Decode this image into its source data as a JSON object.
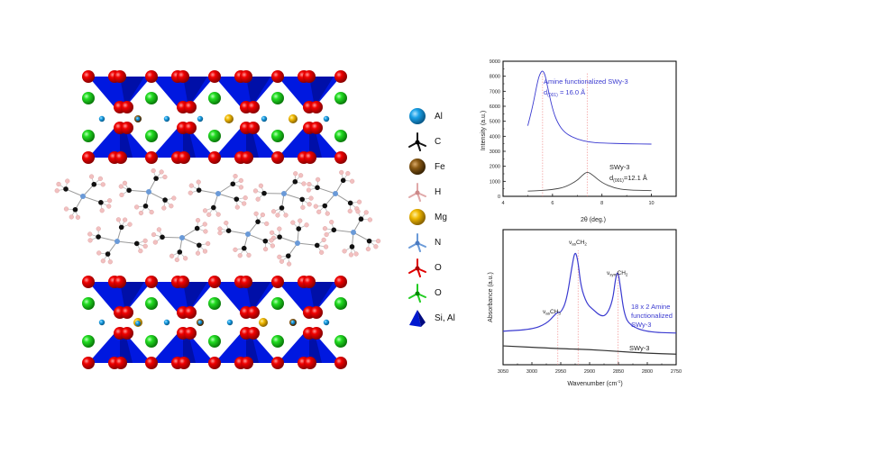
{
  "structure": {
    "description": "Layered clay crystal structure with intercalated amine molecules",
    "colors": {
      "O": "#e50000",
      "O_green": "#22cc22",
      "Al": "#1ea0e0",
      "Mg": "#f0b800",
      "Fe": "#8a5a14",
      "C": "#111111",
      "H": "#f0b8b8",
      "N": "#6a9ad8",
      "tetrahedra": "#0018e0"
    }
  },
  "legend": {
    "items": [
      {
        "label": "Al",
        "icon": "sphere",
        "color": "#1a8fd6"
      },
      {
        "label": "C",
        "icon": "stick-tetra",
        "color": "#111111"
      },
      {
        "label": "Fe",
        "icon": "sphere",
        "color": "#7a4a0c"
      },
      {
        "label": "H",
        "icon": "stick-tetra",
        "color": "#e0a8a8"
      },
      {
        "label": "Mg",
        "icon": "sphere",
        "color": "#e0a800"
      },
      {
        "label": "N",
        "icon": "stick-tetra",
        "color": "#6a9ad8"
      },
      {
        "label": "O",
        "icon": "stick-tetra",
        "color": "#e00000"
      },
      {
        "label": "O",
        "icon": "stick-tetra",
        "color": "#22cc22"
      },
      {
        "label": "Si, Al",
        "icon": "tetrahedron",
        "color": "#0018d0"
      }
    ]
  },
  "chart_data": [
    {
      "type": "line",
      "title": "",
      "xlabel": "2θ (deg.)",
      "ylabel": "Intensity (a.u.)",
      "xlim": [
        4,
        11
      ],
      "ylim": [
        0,
        9000
      ],
      "xticks": [
        "4",
        "6",
        "8",
        "10"
      ],
      "yticks": [
        "0",
        "1000",
        "2000",
        "3000",
        "4000",
        "5000",
        "6000",
        "7000",
        "8000",
        "9000"
      ],
      "grid": false,
      "series": [
        {
          "name": "Amine functionalized SWy-3",
          "color": "#3a3ad0",
          "annotation": "d(001) = 16.0 Å",
          "peak_x": 5.6,
          "x": [
            5.0,
            5.2,
            5.4,
            5.5,
            5.6,
            5.7,
            5.8,
            6.0,
            6.2,
            6.5,
            7.0,
            7.5,
            8.0,
            9.0,
            10.0
          ],
          "y": [
            4700,
            6000,
            7700,
            8200,
            8400,
            8100,
            7300,
            5800,
            4900,
            4200,
            3800,
            3600,
            3550,
            3500,
            3480
          ]
        },
        {
          "name": "SWy-3",
          "color": "#444444",
          "annotation": "d(001)=12.1 Å",
          "peak_x": 7.4,
          "x": [
            5.0,
            5.5,
            6.0,
            6.5,
            7.0,
            7.2,
            7.4,
            7.6,
            8.0,
            8.5,
            9.0,
            10.0
          ],
          "y": [
            350,
            380,
            450,
            600,
            1050,
            1400,
            1650,
            1450,
            900,
            550,
            420,
            380
          ]
        }
      ],
      "reference_lines_x": [
        5.6,
        7.4
      ]
    },
    {
      "type": "line",
      "title": "",
      "xlabel": "Wavenumber (cm⁻¹)",
      "ylabel": "Absorbance (a.u.)",
      "xlim": [
        3050,
        2750
      ],
      "xticks": [
        "3050",
        "3000",
        "2950",
        "2900",
        "2850",
        "2800",
        "2750"
      ],
      "grid": false,
      "series": [
        {
          "name": "18 x 2 Amine functionalized SWy-3",
          "color": "#3a3ad0",
          "x": [
            3050,
            3000,
            2975,
            2960,
            2955,
            2950,
            2940,
            2930,
            2925,
            2920,
            2915,
            2905,
            2895,
            2880,
            2870,
            2860,
            2855,
            2851,
            2847,
            2840,
            2830,
            2800,
            2750
          ],
          "y": [
            0.12,
            0.14,
            0.2,
            0.3,
            0.33,
            0.32,
            0.45,
            0.85,
            1.0,
            0.88,
            0.6,
            0.42,
            0.36,
            0.28,
            0.3,
            0.45,
            0.7,
            0.78,
            0.62,
            0.3,
            0.18,
            0.11,
            0.1
          ]
        },
        {
          "name": "SWy-3",
          "color": "#333333",
          "x": [
            3050,
            2950,
            2900,
            2850,
            2800,
            2750
          ],
          "y": [
            -0.04,
            -0.07,
            -0.08,
            -0.1,
            -0.12,
            -0.13
          ]
        }
      ],
      "annotations": [
        {
          "text": "νasCH3",
          "x": 2955
        },
        {
          "text": "νasCH2",
          "x": 2920
        },
        {
          "text": "νsymCH2",
          "x": 2851
        }
      ],
      "reference_lines_x": [
        2955,
        2920,
        2851
      ]
    }
  ],
  "xrd": {
    "ylabel": "Intensity (a.u.)",
    "xlabel": "2θ (deg.)",
    "series1_label": "Amine functionalized SWy-3",
    "series1_d_prefix": "d",
    "series1_d_sub": "(001)",
    "series1_d_value": " = 16.0 Å",
    "series2_label": "SWy-3",
    "series2_d_prefix": "d",
    "series2_d_sub": "(001)",
    "series2_d_value": "=12.1 Å"
  },
  "ftir": {
    "ylabel": "Absorbance (a.u.)",
    "xlabel": "Wavenumber (cm",
    "xlabel_sup": "-1",
    "xlabel_end": ")",
    "peak1_main": "ν",
    "peak1_sub": "as",
    "peak1_group": "CH",
    "peak1_num": "3",
    "peak2_main": "ν",
    "peak2_sub": "as",
    "peak2_group": "CH",
    "peak2_num": "2",
    "peak3_main": "ν",
    "peak3_sub": "sym",
    "peak3_group": "CH",
    "peak3_num": "2",
    "series1_line1": "18 x 2 Amine",
    "series1_line2": "functionalized",
    "series1_line3": "SWy-3",
    "series2_label": "SWy-3"
  }
}
